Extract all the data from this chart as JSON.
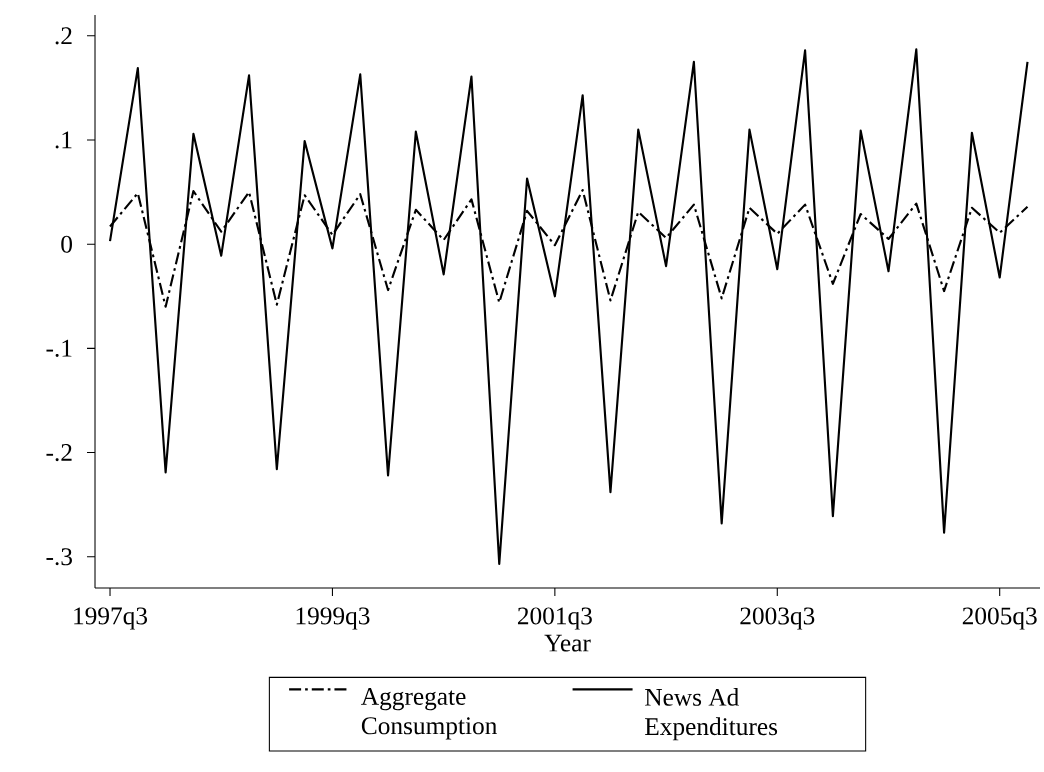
{
  "chart_data": {
    "type": "line",
    "xlabel": "Year",
    "categories": [
      "1997q3",
      null,
      null,
      null,
      null,
      null,
      null,
      null,
      "1999q3",
      null,
      null,
      null,
      null,
      null,
      null,
      null,
      "2001q3",
      null,
      null,
      null,
      null,
      null,
      null,
      null,
      "2003q3",
      null,
      null,
      null,
      null,
      null,
      null,
      null,
      "2005q3",
      null
    ],
    "series": [
      {
        "name": "Aggregate Consumption",
        "color": "#000000",
        "line_style": "dashed",
        "values": [
          0.017,
          0.049,
          -0.06,
          0.051,
          0.012,
          0.05,
          -0.058,
          0.047,
          0.009,
          0.048,
          -0.044,
          0.033,
          0.004,
          0.043,
          -0.056,
          0.032,
          -0.001,
          0.052,
          -0.054,
          0.031,
          0.006,
          0.038,
          -0.052,
          0.035,
          0.01,
          0.038,
          -0.038,
          0.029,
          0.005,
          0.039,
          -0.045,
          0.035,
          0.011,
          0.036
        ]
      },
      {
        "name": "News Ad Expenditures",
        "color": "#000000",
        "line_style": "solid",
        "values": [
          0.003,
          0.169,
          -0.219,
          0.106,
          -0.011,
          0.162,
          -0.216,
          0.099,
          -0.004,
          0.163,
          -0.222,
          0.108,
          -0.029,
          0.161,
          -0.307,
          0.063,
          -0.05,
          0.143,
          -0.238,
          0.11,
          -0.021,
          0.175,
          -0.268,
          0.11,
          -0.024,
          0.186,
          -0.261,
          0.109,
          -0.026,
          0.187,
          -0.277,
          0.107,
          -0.032,
          0.175
        ]
      }
    ],
    "ylim": [
      -0.33,
      0.22
    ],
    "yticks": [
      {
        "value": -0.3,
        "label": "-.3"
      },
      {
        "value": -0.2,
        "label": "-.2"
      },
      {
        "value": -0.1,
        "label": "-.1"
      },
      {
        "value": 0,
        "label": "0"
      },
      {
        "value": 0.1,
        "label": ".1"
      },
      {
        "value": 0.2,
        "label": ".2"
      }
    ],
    "grid": false,
    "legend": "bottom",
    "marker": "none"
  }
}
